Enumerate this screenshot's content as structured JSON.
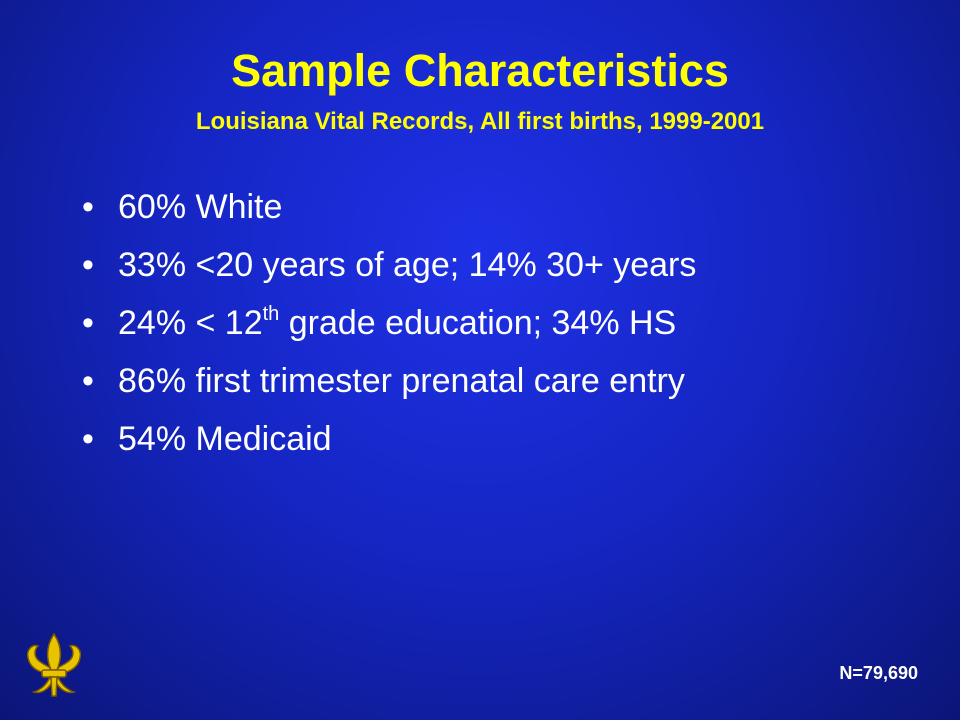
{
  "title": "Sample Characteristics",
  "subtitle": "Louisiana Vital Records, All first births, 1999-2001",
  "bullet_symbol": "•",
  "bullets": [
    {
      "text": "60% White"
    },
    {
      "text": "33% <20 years of age; 14% 30+ years"
    },
    {
      "before": "24% < 12",
      "sup": "th",
      "after": " grade education; 34% HS"
    },
    {
      "text": "86% first trimester prenatal care entry"
    },
    {
      "text": "54% Medicaid"
    }
  ],
  "sample_size": "N=79,690",
  "logo_icon": "fleur-de-lis-icon",
  "colors": {
    "title": "#ffff00",
    "body": "#ffffff",
    "background": "#1526c4",
    "logo": "#e8c400"
  }
}
